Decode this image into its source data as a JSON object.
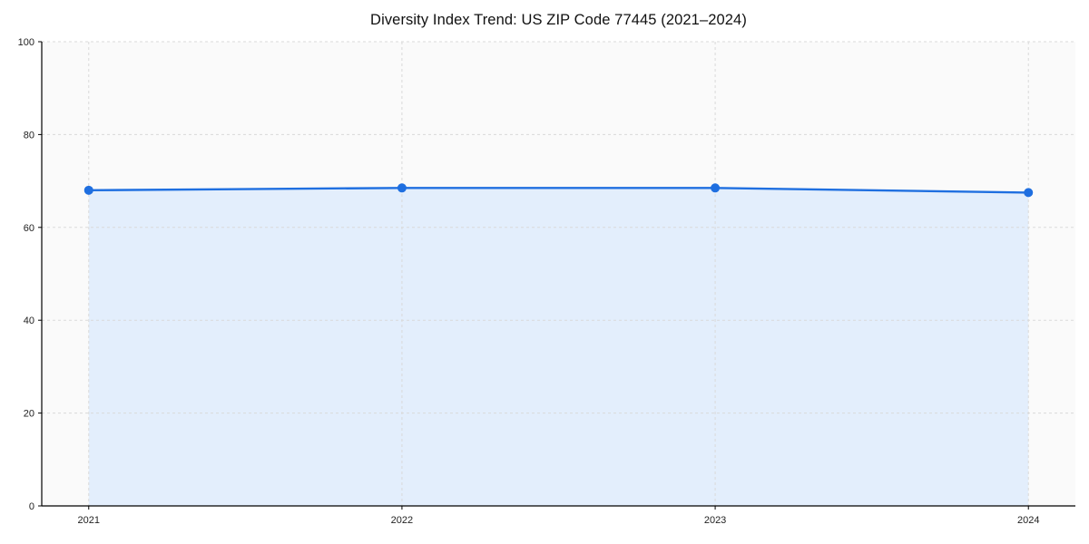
{
  "chart_data": {
    "type": "line",
    "title": "Diversity Index Trend: US ZIP Code 77445 (2021–2024)",
    "x": [
      2021,
      2022,
      2023,
      2024
    ],
    "categories": [
      "2021",
      "2022",
      "2023",
      "2024"
    ],
    "series": [
      {
        "name": "Diversity Index",
        "values": [
          68,
          68.5,
          68.5,
          67.5
        ]
      }
    ],
    "xlabel": "",
    "ylabel": "",
    "xlim": [
      2020.85,
      2024.15
    ],
    "ylim": [
      0,
      100
    ],
    "yticks": [
      0,
      20,
      40,
      60,
      80,
      100
    ],
    "grid": true,
    "grid_style": "dashed",
    "legend_position": "none",
    "line_color": "#1f6fe0",
    "marker_color": "#1f6fe0",
    "fill_color": "#dbe9fc",
    "grid_color": "#d9d9d9",
    "axis_color": "#000000",
    "plot_bg_color": "#fafafa"
  }
}
